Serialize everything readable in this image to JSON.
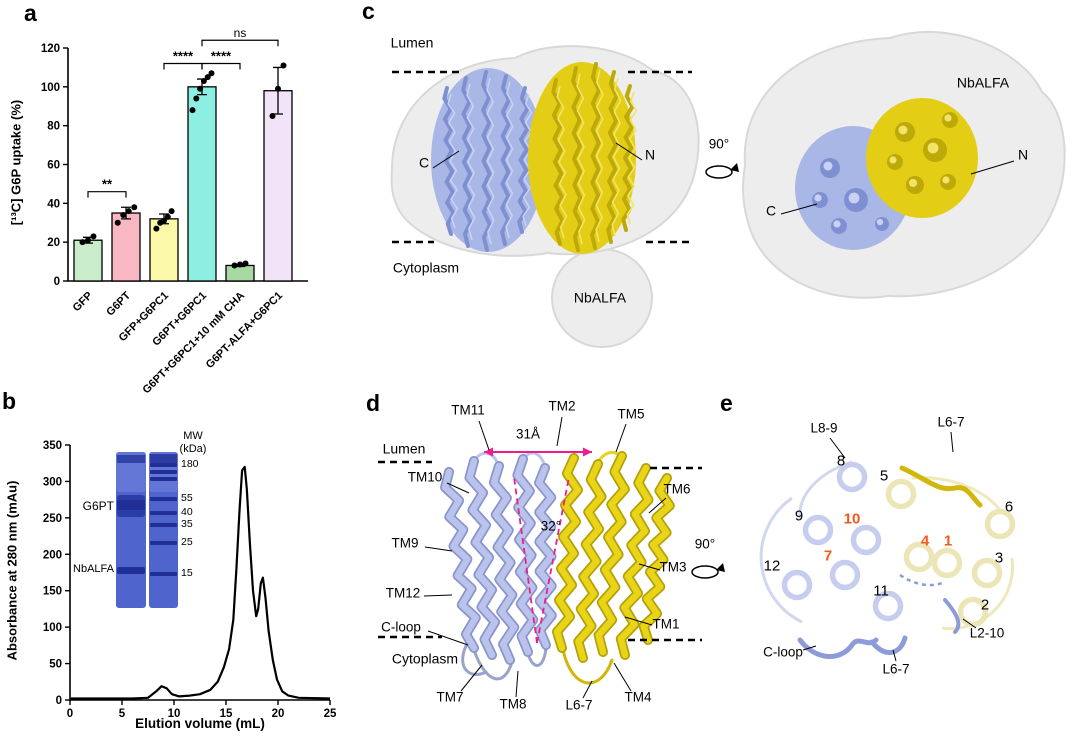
{
  "panels": {
    "a": "a",
    "b": "b",
    "c": "c",
    "d": "d",
    "e": "e"
  },
  "chart_data": [
    {
      "panel": "a",
      "type": "bar",
      "ylabel": "[¹³C] G6P uptake (%)",
      "ylim": [
        0,
        120
      ],
      "yticks": [
        0,
        20,
        40,
        60,
        80,
        100,
        120
      ],
      "categories": [
        "GFP",
        "G6PT",
        "GFP+G6PC1",
        "G6PT+G6PC1",
        "G6PT+G6PC1+10 mM CHA",
        "G6PT-ALFA+G6PC1"
      ],
      "values": [
        21,
        35,
        32,
        100,
        8,
        98
      ],
      "errors": [
        1.5,
        3,
        2.5,
        4,
        0.5,
        12
      ],
      "bar_colors": [
        "#c9ecca",
        "#f8b7c3",
        "#fbf8a9",
        "#8defe2",
        "#a9d9a2",
        "#f2e3f8"
      ],
      "points": [
        [
          20,
          21,
          23
        ],
        [
          30,
          34,
          36,
          38
        ],
        [
          27,
          30,
          31,
          33,
          36
        ],
        [
          88,
          94,
          99,
          103,
          105,
          107
        ],
        [
          8,
          8.5,
          9
        ],
        [
          85,
          99,
          111
        ]
      ],
      "significance": [
        {
          "label": "**",
          "from": 0,
          "to": 1,
          "y": 46
        },
        {
          "label": "****",
          "from": 2,
          "to": 3,
          "y": 112
        },
        {
          "label": "****",
          "from": 3,
          "to": 4,
          "y": 112
        },
        {
          "label": "ns",
          "from": 3,
          "to": 5,
          "y": 124
        }
      ]
    },
    {
      "panel": "b",
      "type": "line",
      "xlabel": "Elution volume (mL)",
      "ylabel": "Absorbance at 280 nm (mAu)",
      "xlim": [
        0,
        25
      ],
      "ylim": [
        0,
        350
      ],
      "xticks": [
        0,
        5,
        10,
        15,
        20,
        25
      ],
      "yticks": [
        0,
        50,
        100,
        150,
        200,
        250,
        300,
        350
      ],
      "series": [
        {
          "name": "absorbance-280nm",
          "points": [
            [
              0,
              2
            ],
            [
              6,
              2
            ],
            [
              7.5,
              3
            ],
            [
              8.3,
              12
            ],
            [
              8.8,
              19
            ],
            [
              9.3,
              16
            ],
            [
              9.8,
              8
            ],
            [
              10.5,
              5
            ],
            [
              11.5,
              6
            ],
            [
              12.5,
              8
            ],
            [
              13.5,
              14
            ],
            [
              14.2,
              25
            ],
            [
              14.8,
              45
            ],
            [
              15.3,
              70
            ],
            [
              15.7,
              110
            ],
            [
              16,
              180
            ],
            [
              16.3,
              260
            ],
            [
              16.55,
              315
            ],
            [
              16.8,
              320
            ],
            [
              17,
              290
            ],
            [
              17.3,
              215
            ],
            [
              17.6,
              150
            ],
            [
              17.9,
              115
            ],
            [
              18.1,
              125
            ],
            [
              18.35,
              160
            ],
            [
              18.55,
              168
            ],
            [
              18.8,
              140
            ],
            [
              19.1,
              95
            ],
            [
              19.5,
              55
            ],
            [
              19.9,
              28
            ],
            [
              20.4,
              12
            ],
            [
              21,
              6
            ],
            [
              22,
              3
            ],
            [
              25,
              2
            ]
          ]
        }
      ]
    }
  ],
  "panel_b_gel": {
    "mw_title_line1": "MW",
    "mw_title_line2": "(kDa)",
    "mw_values": [
      "180",
      "55",
      "40",
      "35",
      "25",
      "15"
    ],
    "band_label_top": "G6PT",
    "band_label_bottom": "NbALFA"
  },
  "panel_c": {
    "lumen": "Lumen",
    "cytoplasm": "Cytoplasm",
    "c_terminal": "C",
    "n_terminal": "N",
    "nbalfa_side": "NbALFA",
    "rotation": "90°",
    "nbalfa_top": "NbALFA",
    "n_top": "N",
    "c_top": "C"
  },
  "panel_d": {
    "lumen": "Lumen",
    "cytoplasm": "Cytoplasm",
    "distance": "31Å",
    "angle": "32°",
    "rotation": "90°",
    "tm_labels": [
      "TM11",
      "TM2",
      "TM5",
      "TM10",
      "TM6",
      "TM9",
      "TM3",
      "TM12",
      "C-loop",
      "TM1",
      "TM7",
      "TM8",
      "L6-7",
      "TM4"
    ]
  },
  "panel_e": {
    "helix_numbers": [
      {
        "text": "8",
        "accent": false
      },
      {
        "text": "5",
        "accent": false
      },
      {
        "text": "9",
        "accent": false
      },
      {
        "text": "10",
        "accent": true
      },
      {
        "text": "6",
        "accent": false
      },
      {
        "text": "4",
        "accent": true
      },
      {
        "text": "1",
        "accent": true
      },
      {
        "text": "3",
        "accent": false
      },
      {
        "text": "12",
        "accent": false
      },
      {
        "text": "7",
        "accent": true
      },
      {
        "text": "11",
        "accent": false
      },
      {
        "text": "2",
        "accent": false
      }
    ],
    "loop_labels": [
      "L8-9",
      "L6-7",
      "L2-10",
      "C-loop",
      "L6-7"
    ]
  },
  "colors": {
    "blue_density": "#a9b7e6",
    "blue_density_dark": "#7f90d2",
    "blue_density_light": "#c9d2f3",
    "yellow_density": "#e4ce15",
    "yellow_density_dark": "#bda907",
    "yellow_density_light": "#f1e468",
    "micelle": "#ededed",
    "micelle_edge": "#d8d8d8",
    "ribbon_blue": "#b9c3ec",
    "ribbon_blue_dark": "#8a95cc",
    "ribbon_yellow": "#e9d417",
    "ribbon_yellow_dark": "#b3a109",
    "loop_gray": "#9aa3c9",
    "pale_blue": "#c6cdee",
    "pale_yellow": "#ece5b6",
    "bold_blue": "#8d9cd8",
    "bold_yellow": "#d2b60a",
    "accent_orange": "#f4581d",
    "magenta": "#ec1e8e",
    "gel_base": "#5064cd",
    "gel_band": "#1f2f96"
  }
}
